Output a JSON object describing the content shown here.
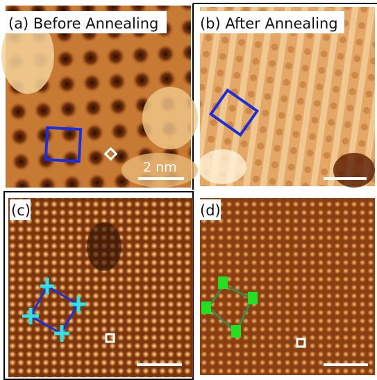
{
  "panels": [
    {
      "label": "(a) Before Annealing",
      "scale_bar": "2 nm"
    },
    {
      "label": "(b) After Annealing"
    },
    {
      "label": "(c)"
    },
    {
      "label": "(d)"
    }
  ]
}
